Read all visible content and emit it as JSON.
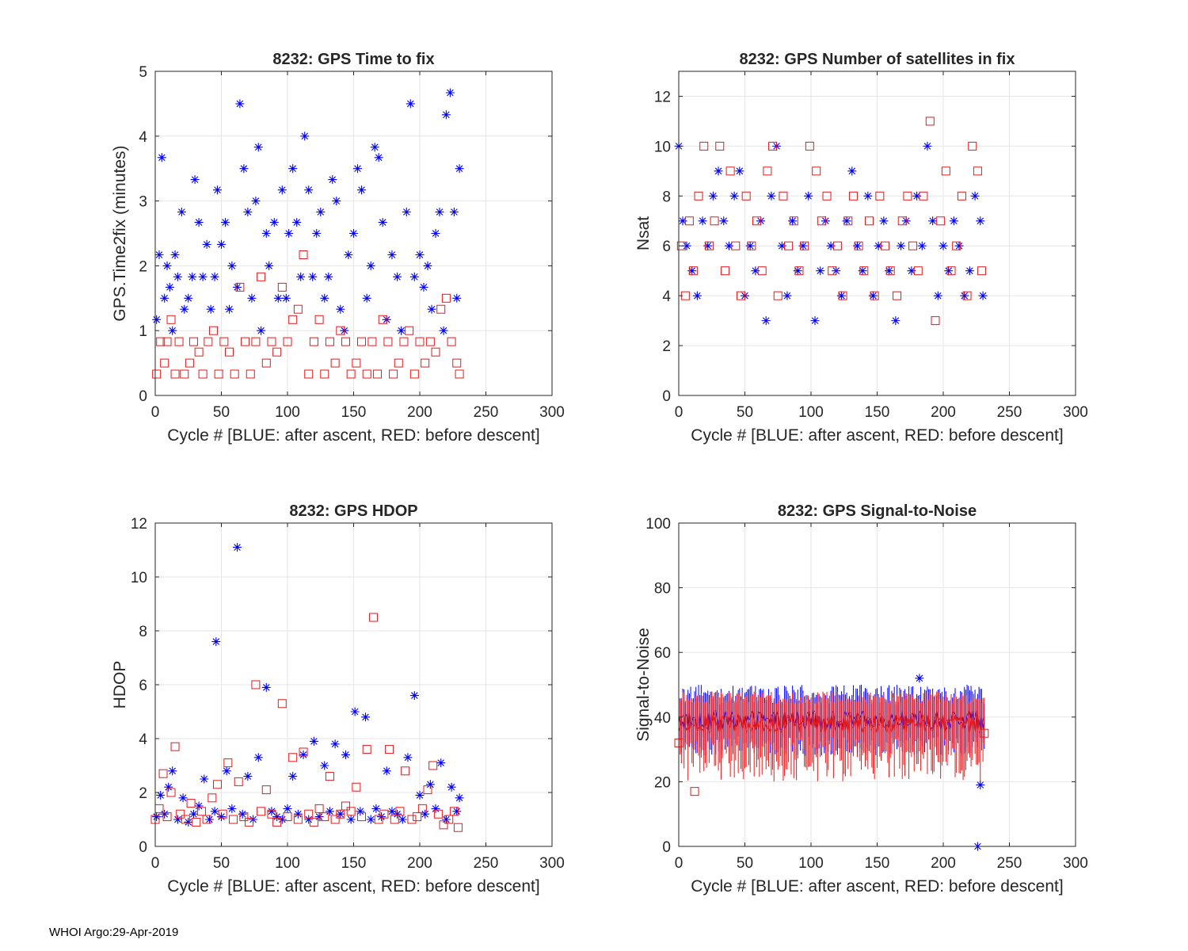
{
  "footer": "WHOI Argo:29-Apr-2019",
  "colors": {
    "after_ascent": "#0000ff",
    "before_descent": "#e31a1c",
    "grid": "#e6e6e6",
    "axis": "#262626"
  },
  "chart_data": [
    {
      "id": "time2fix",
      "type": "scatter",
      "title": "8232: GPS Time to fix",
      "xlabel": "Cycle #  [BLUE: after ascent, RED: before descent]",
      "ylabel": "GPS.Time2fix (minutes)",
      "xlim": [
        0,
        300
      ],
      "ylim": [
        0,
        5
      ],
      "xticks": [
        0,
        50,
        100,
        150,
        200,
        250,
        300
      ],
      "yticks": [
        0,
        1,
        2,
        3,
        4,
        5
      ],
      "grid": true,
      "series": [
        {
          "name": "after ascent",
          "color": "#0000ff",
          "marker": "asterisk",
          "x": [
            1,
            3,
            5,
            7,
            9,
            11,
            13,
            15,
            17,
            20,
            22,
            25,
            28,
            30,
            33,
            36,
            39,
            42,
            45,
            47,
            50,
            53,
            56,
            58,
            62,
            64,
            67,
            70,
            73,
            76,
            78,
            80,
            84,
            86,
            90,
            93,
            96,
            99,
            101,
            104,
            107,
            110,
            113,
            116,
            119,
            122,
            125,
            128,
            131,
            134,
            137,
            140,
            143,
            146,
            150,
            153,
            156,
            160,
            163,
            166,
            169,
            172,
            175,
            179,
            183,
            186,
            190,
            193,
            196,
            200,
            203,
            206,
            209,
            212,
            215,
            218,
            220,
            223,
            226,
            228,
            230
          ],
          "y": [
            1.17,
            2.17,
            3.67,
            1.5,
            2.0,
            1.67,
            1.0,
            2.17,
            1.83,
            2.83,
            1.33,
            1.5,
            1.83,
            3.33,
            2.67,
            1.83,
            2.33,
            1.33,
            1.83,
            3.17,
            2.33,
            2.67,
            1.33,
            2.0,
            1.67,
            4.5,
            3.5,
            2.83,
            1.5,
            3.0,
            3.83,
            1.0,
            2.5,
            2.0,
            2.67,
            1.5,
            3.17,
            1.5,
            2.5,
            3.5,
            2.67,
            1.83,
            4.0,
            3.17,
            1.83,
            2.5,
            2.83,
            1.5,
            1.83,
            3.33,
            3.0,
            1.33,
            1.0,
            2.17,
            2.5,
            3.5,
            3.17,
            1.5,
            2.0,
            3.83,
            3.67,
            2.67,
            1.17,
            2.17,
            1.83,
            1.0,
            2.83,
            4.5,
            1.83,
            2.17,
            1.67,
            2.0,
            1.33,
            2.5,
            2.83,
            1.0,
            4.33,
            4.67,
            2.83,
            1.5,
            3.5
          ]
        },
        {
          "name": "before descent",
          "color": "#e31a1c",
          "marker": "square",
          "x": [
            1,
            4,
            7,
            9,
            12,
            15,
            18,
            22,
            26,
            29,
            33,
            36,
            40,
            44,
            48,
            52,
            56,
            60,
            64,
            68,
            72,
            76,
            80,
            84,
            88,
            92,
            96,
            100,
            104,
            108,
            112,
            116,
            120,
            124,
            128,
            132,
            136,
            140,
            144,
            148,
            152,
            156,
            160,
            164,
            168,
            172,
            176,
            180,
            184,
            188,
            192,
            196,
            200,
            204,
            208,
            212,
            216,
            220,
            224,
            228,
            230
          ],
          "y": [
            0.33,
            0.83,
            0.5,
            0.83,
            1.17,
            0.33,
            0.83,
            0.33,
            0.5,
            0.83,
            0.67,
            0.33,
            0.83,
            1.0,
            0.33,
            0.83,
            0.67,
            0.33,
            1.67,
            0.83,
            0.33,
            0.83,
            1.83,
            0.5,
            0.83,
            0.67,
            1.67,
            0.83,
            1.17,
            1.33,
            2.17,
            0.33,
            0.83,
            1.17,
            0.33,
            0.83,
            0.5,
            1.0,
            0.83,
            0.33,
            0.5,
            0.83,
            0.33,
            0.83,
            0.33,
            1.17,
            0.83,
            0.33,
            0.5,
            0.83,
            1.0,
            0.33,
            0.83,
            0.5,
            0.83,
            0.67,
            1.33,
            1.5,
            0.83,
            0.5,
            0.33
          ]
        }
      ]
    },
    {
      "id": "nsat",
      "type": "scatter",
      "title": "8232: GPS Number of satellites in fix",
      "xlabel": "Cycle #  [BLUE: after ascent, RED: before descent]",
      "ylabel": "Nsat",
      "xlim": [
        0,
        300
      ],
      "ylim": [
        0,
        13
      ],
      "xticks": [
        0,
        50,
        100,
        150,
        200,
        250,
        300
      ],
      "yticks": [
        0,
        2,
        4,
        6,
        8,
        10,
        12
      ],
      "grid": true,
      "series": [
        {
          "name": "after ascent",
          "color": "#0000ff",
          "marker": "asterisk",
          "x": [
            0,
            3,
            6,
            10,
            14,
            18,
            22,
            26,
            30,
            34,
            38,
            42,
            46,
            50,
            54,
            58,
            62,
            66,
            70,
            74,
            78,
            82,
            86,
            90,
            94,
            98,
            103,
            107,
            111,
            115,
            119,
            123,
            127,
            131,
            135,
            139,
            143,
            147,
            151,
            155,
            159,
            164,
            168,
            172,
            176,
            180,
            184,
            188,
            192,
            196,
            200,
            204,
            208,
            212,
            216,
            220,
            224,
            228,
            230
          ],
          "x_note": "cycle numbers",
          "y": [
            10,
            7,
            6,
            5,
            4,
            7,
            6,
            8,
            9,
            7,
            6,
            8,
            9,
            4,
            6,
            5,
            7,
            3,
            8,
            10,
            6,
            4,
            7,
            5,
            6,
            8,
            3,
            5,
            7,
            6,
            5,
            4,
            7,
            9,
            6,
            5,
            8,
            4,
            6,
            7,
            5,
            3,
            6,
            7,
            5,
            8,
            6,
            10,
            7,
            4,
            6,
            5,
            7,
            6,
            4,
            5,
            8,
            7,
            4
          ]
        },
        {
          "name": "before descent",
          "color": "#e31a1c",
          "marker": "square",
          "x": [
            2,
            5,
            8,
            11,
            15,
            19,
            23,
            27,
            31,
            35,
            39,
            43,
            47,
            51,
            55,
            59,
            63,
            67,
            71,
            75,
            79,
            83,
            87,
            91,
            95,
            99,
            104,
            108,
            112,
            116,
            120,
            124,
            128,
            132,
            136,
            140,
            144,
            148,
            152,
            156,
            160,
            165,
            169,
            173,
            177,
            181,
            185,
            190,
            194,
            198,
            202,
            206,
            210,
            214,
            218,
            222,
            226,
            229
          ],
          "y": [
            6,
            4,
            7,
            5,
            8,
            10,
            6,
            7,
            10,
            5,
            9,
            6,
            4,
            8,
            6,
            7,
            5,
            9,
            10,
            4,
            8,
            6,
            7,
            5,
            6,
            10,
            9,
            7,
            8,
            5,
            6,
            4,
            7,
            8,
            6,
            5,
            7,
            4,
            8,
            6,
            5,
            4,
            7,
            8,
            6,
            5,
            8,
            11,
            3,
            7,
            9,
            5,
            6,
            8,
            4,
            10,
            9,
            5
          ]
        }
      ]
    },
    {
      "id": "hdop",
      "type": "scatter",
      "title": "8232: GPS HDOP",
      "xlabel": "Cycle #  [BLUE: after ascent, RED: before descent]",
      "ylabel": "HDOP",
      "xlim": [
        0,
        300
      ],
      "ylim": [
        0,
        12
      ],
      "xticks": [
        0,
        50,
        100,
        150,
        200,
        250,
        300
      ],
      "yticks": [
        0,
        2,
        4,
        6,
        8,
        10,
        12
      ],
      "grid": true,
      "series": [
        {
          "name": "after ascent",
          "color": "#0000ff",
          "marker": "asterisk",
          "x": [
            1,
            4,
            7,
            10,
            13,
            17,
            21,
            25,
            29,
            33,
            37,
            41,
            45,
            46,
            50,
            54,
            58,
            62,
            66,
            70,
            74,
            78,
            84,
            88,
            92,
            96,
            100,
            104,
            108,
            112,
            116,
            120,
            124,
            128,
            132,
            136,
            140,
            144,
            148,
            151,
            155,
            159,
            163,
            167,
            171,
            175,
            179,
            183,
            187,
            191,
            196,
            200,
            204,
            208,
            212,
            216,
            220,
            224,
            228,
            230
          ],
          "y": [
            1.1,
            1.9,
            1.2,
            2.2,
            2.8,
            1.0,
            1.8,
            0.9,
            1.2,
            1.5,
            2.5,
            1.0,
            1.3,
            7.6,
            1.1,
            2.8,
            1.4,
            11.1,
            1.2,
            2.6,
            1.0,
            3.3,
            5.9,
            1.3,
            1.1,
            1.0,
            1.4,
            2.6,
            1.2,
            3.4,
            1.0,
            3.9,
            1.1,
            3.0,
            1.3,
            3.8,
            1.2,
            3.4,
            1.0,
            5.0,
            1.3,
            4.8,
            1.0,
            1.4,
            1.1,
            2.8,
            1.3,
            1.2,
            1.0,
            3.3,
            5.6,
            1.9,
            1.2,
            2.3,
            1.4,
            3.1,
            1.0,
            2.2,
            1.3,
            1.8
          ]
        },
        {
          "name": "before descent",
          "color": "#e31a1c",
          "marker": "square",
          "x": [
            0,
            3,
            6,
            9,
            12,
            15,
            19,
            23,
            27,
            31,
            35,
            39,
            43,
            47,
            51,
            55,
            59,
            63,
            67,
            71,
            76,
            80,
            84,
            88,
            92,
            96,
            100,
            104,
            108,
            112,
            116,
            120,
            124,
            128,
            132,
            136,
            140,
            144,
            148,
            152,
            156,
            160,
            165,
            169,
            173,
            177,
            181,
            185,
            189,
            194,
            198,
            202,
            206,
            210,
            214,
            218,
            222,
            226,
            229
          ],
          "y": [
            1.0,
            1.4,
            2.7,
            1.1,
            2.0,
            3.7,
            1.2,
            1.0,
            1.6,
            0.9,
            1.3,
            1.0,
            1.8,
            2.3,
            1.2,
            3.1,
            1.0,
            2.4,
            1.1,
            0.9,
            6.0,
            1.3,
            2.1,
            1.2,
            0.9,
            5.3,
            1.1,
            3.3,
            1.0,
            3.5,
            1.2,
            0.9,
            1.4,
            1.1,
            2.6,
            1.0,
            1.2,
            1.5,
            1.3,
            2.2,
            1.1,
            3.6,
            8.5,
            1.0,
            1.2,
            3.6,
            1.0,
            1.3,
            2.8,
            1.0,
            1.1,
            1.4,
            2.1,
            3.0,
            1.2,
            0.8,
            1.0,
            1.3,
            0.7
          ]
        }
      ]
    },
    {
      "id": "snr",
      "type": "errorbar",
      "title": "8232: GPS Signal-to-Noise",
      "xlabel": "Cycle #  [BLUE: after ascent, RED: before descent]",
      "ylabel": "Signal-to-Noise",
      "xlim": [
        0,
        300
      ],
      "ylim": [
        0,
        100
      ],
      "xticks": [
        0,
        50,
        100,
        150,
        200,
        250,
        300
      ],
      "yticks": [
        0,
        20,
        40,
        60,
        80,
        100
      ],
      "grid": true,
      "series": [
        {
          "name": "after ascent",
          "color": "#0000ff",
          "marker": "asterisk",
          "x_range": [
            0,
            231
          ],
          "mean_level": 39,
          "mean_spread": 3,
          "err_low": [
            28,
            34
          ],
          "err_high": [
            44,
            50
          ],
          "notable_points": [
            {
              "x": 226,
              "y": 0
            },
            {
              "x": 228,
              "y": 19
            },
            {
              "x": 182,
              "y": 52
            }
          ]
        },
        {
          "name": "before descent",
          "color": "#e31a1c",
          "marker": "square",
          "x_range": [
            0,
            231
          ],
          "mean_level": 38,
          "mean_spread": 3,
          "err_low": [
            20,
            34
          ],
          "err_high": [
            44,
            48
          ],
          "notable_points": [
            {
              "x": 0,
              "y": 32
            },
            {
              "x": 12,
              "y": 17
            },
            {
              "x": 231,
              "y": 35
            }
          ]
        }
      ]
    }
  ]
}
